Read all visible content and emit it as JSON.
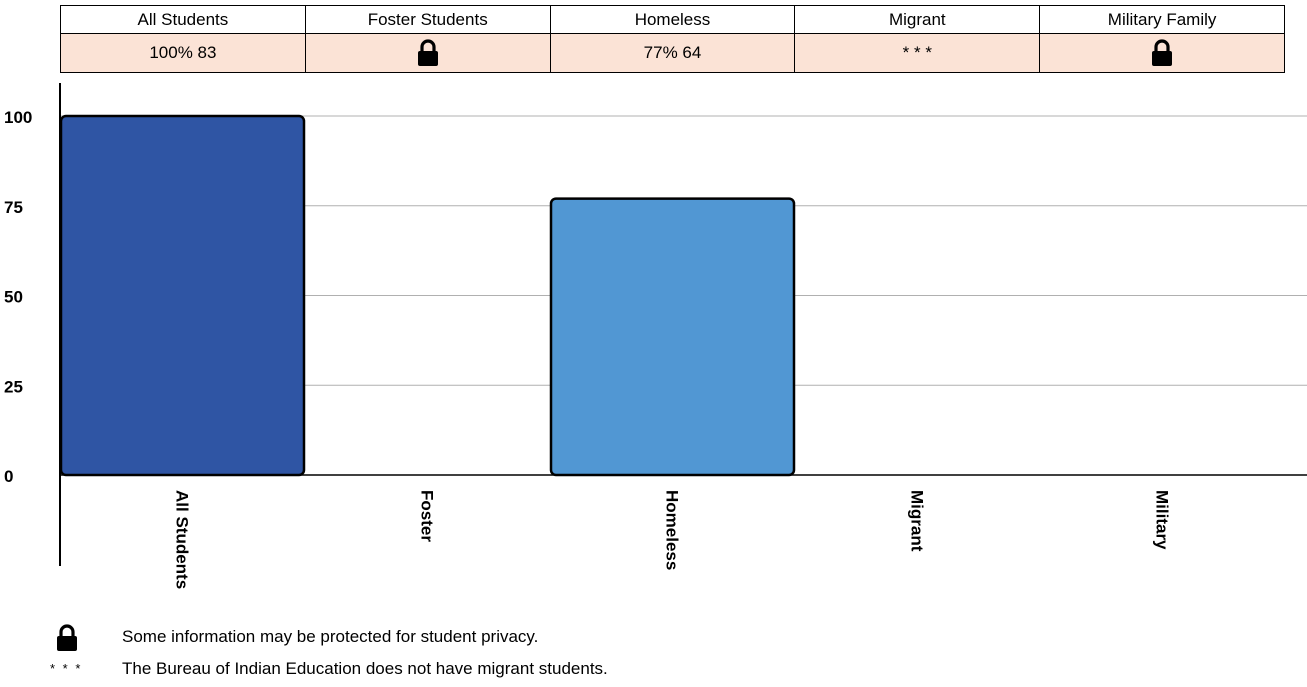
{
  "table": {
    "headers": [
      "All Students",
      "Foster Students",
      "Homeless",
      "Migrant",
      "Military Family"
    ],
    "values": [
      {
        "text": "100%  83",
        "icon": null
      },
      {
        "text": "",
        "icon": "lock-icon"
      },
      {
        "text": "77%  64",
        "icon": null
      },
      {
        "text": "* * *",
        "icon": null
      },
      {
        "text": "",
        "icon": "lock-icon"
      }
    ]
  },
  "chart_data": {
    "type": "bar",
    "categories": [
      "All Students",
      "Foster",
      "Homeless",
      "Migrant",
      "Military"
    ],
    "values": [
      100,
      null,
      77,
      null,
      null
    ],
    "bar_colors": [
      "#2f55a4",
      null,
      "#5197d3",
      null,
      null
    ],
    "ylim": [
      0,
      100
    ],
    "yticks": [
      0,
      25,
      50,
      75,
      100
    ],
    "grid": true,
    "xlabel": "",
    "ylabel": ""
  },
  "legend": {
    "lock_note": "Some information may be protected for student privacy.",
    "asterisk_symbol": "* * *",
    "asterisk_note": "The Bureau of Indian Education does not have migrant students."
  }
}
